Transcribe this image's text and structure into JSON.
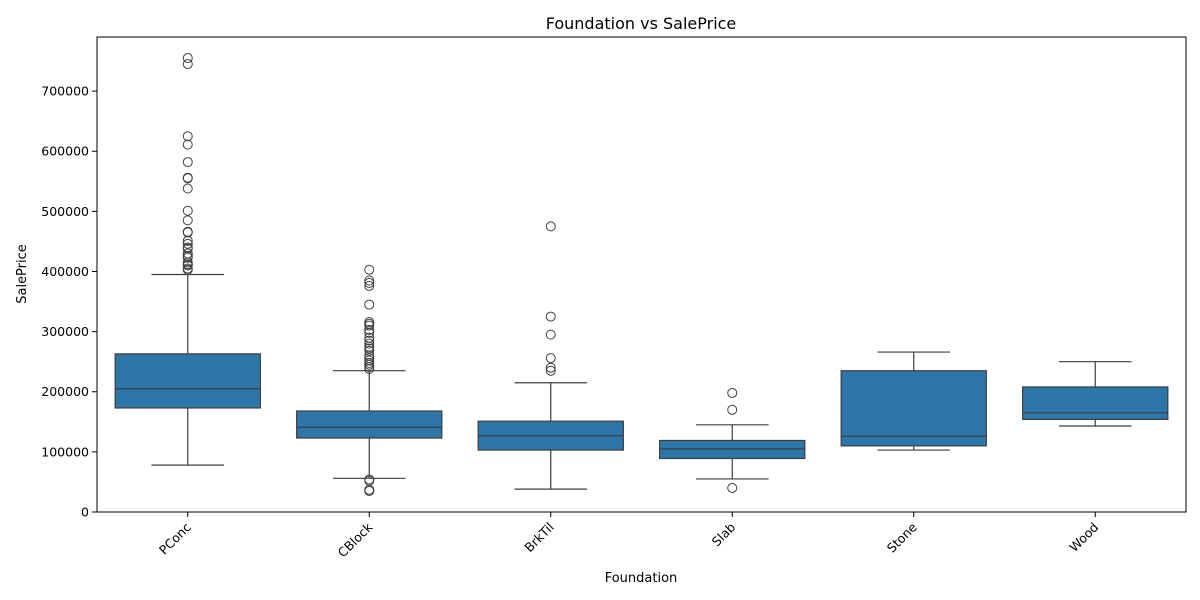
{
  "chart_data": {
    "type": "box",
    "title": "Foundation vs SalePrice",
    "xlabel": "Foundation",
    "ylabel": "SalePrice",
    "ylim": [
      0,
      790000
    ],
    "yticks": [
      0,
      100000,
      200000,
      300000,
      400000,
      500000,
      600000,
      700000
    ],
    "ytick_labels": [
      "0",
      "100000",
      "200000",
      "300000",
      "400000",
      "500000",
      "600000",
      "700000"
    ],
    "categories": [
      "PConc",
      "CBlock",
      "BrkTil",
      "Slab",
      "Stone",
      "Wood"
    ],
    "box_color": "#2e75a8",
    "line_color": "#3f3f3f",
    "boxes": [
      {
        "category": "PConc",
        "whisker_low": 78000,
        "q1": 173000,
        "median": 205000,
        "q3": 263000,
        "whisker_high": 395000,
        "outliers": [
          755000,
          745000,
          625000,
          611000,
          582000,
          556000,
          555000,
          538000,
          501000,
          485000,
          466000,
          465000,
          451000,
          446000,
          440000,
          438000,
          430000,
          426000,
          423000,
          415000,
          412000,
          410000,
          405000,
          403000
        ]
      },
      {
        "category": "CBlock",
        "whisker_low": 56000,
        "q1": 123000,
        "median": 141000,
        "q3": 168000,
        "whisker_high": 235000,
        "outliers": [
          403000,
          385000,
          381000,
          376000,
          345000,
          316000,
          313000,
          310000,
          303000,
          298000,
          290000,
          285000,
          280000,
          275000,
          272000,
          268000,
          260000,
          256000,
          252000,
          248000,
          245000,
          241000,
          238000,
          54000,
          52000,
          37000,
          35000
        ]
      },
      {
        "category": "BrkTil",
        "whisker_low": 38000,
        "q1": 103000,
        "median": 127000,
        "q3": 151000,
        "whisker_high": 215000,
        "outliers": [
          475000,
          325000,
          295000,
          256000,
          240000,
          235000
        ]
      },
      {
        "category": "Slab",
        "whisker_low": 55000,
        "q1": 89000,
        "median": 105000,
        "q3": 119000,
        "whisker_high": 145000,
        "outliers": [
          198000,
          170000,
          40000
        ]
      },
      {
        "category": "Stone",
        "whisker_low": 103000,
        "q1": 110000,
        "median": 126000,
        "q3": 235000,
        "whisker_high": 266000,
        "outliers": []
      },
      {
        "category": "Wood",
        "whisker_low": 143000,
        "q1": 154000,
        "median": 165000,
        "q3": 208000,
        "whisker_high": 250000,
        "outliers": []
      }
    ]
  }
}
